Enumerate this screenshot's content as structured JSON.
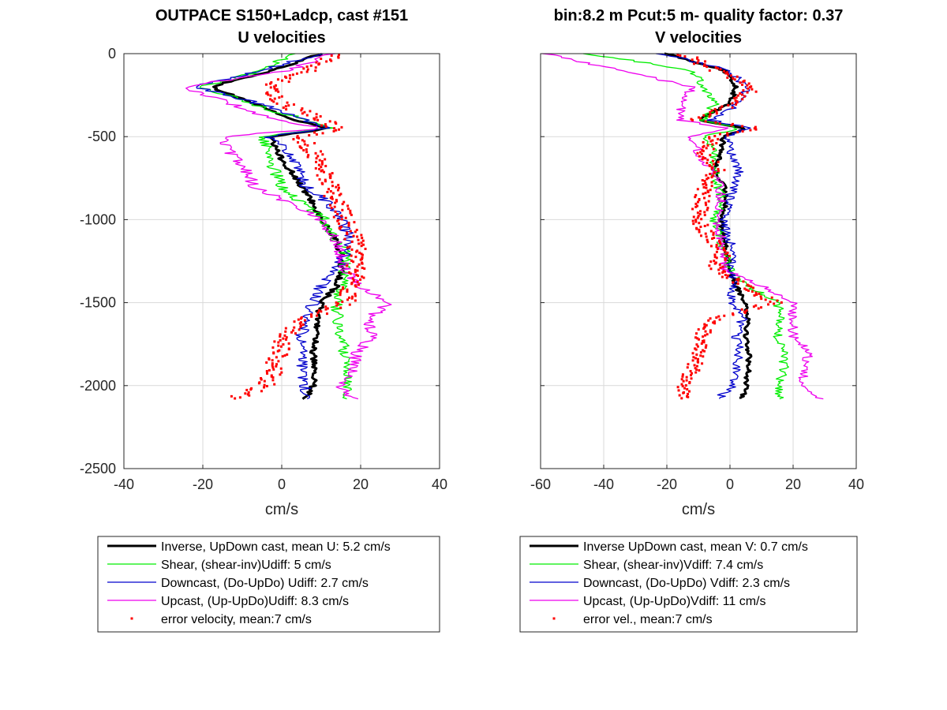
{
  "colors": {
    "inverse": "#000000",
    "shear": "#00ee00",
    "downcast": "#0000cc",
    "upcast": "#ee00ee",
    "error": "#ff0000",
    "grid": "#d9d9d9",
    "axis": "#262626"
  },
  "chart_data": [
    {
      "type": "line",
      "title": "OUTPACE S150+Ladcp, cast #151",
      "subtitle": "U velocities",
      "xlabel": "cm/s",
      "ylabel": "",
      "xlim": [
        -40,
        40
      ],
      "ylim": [
        -2500,
        0
      ],
      "xticks": [
        "-40",
        "-20",
        "0",
        "20",
        "40"
      ],
      "yticks": [
        "0",
        "-500",
        "-1000",
        "-1500",
        "-2000",
        "-2500"
      ],
      "grid": true,
      "legend_position": "below",
      "legend": [
        "Inverse, UpDown cast, mean U:  5.2 cm/s",
        "Shear, (shear-inv)Udiff:  5 cm/s",
        "Downcast, (Do-UpDo) Udiff:  2.7 cm/s",
        "Upcast, (Up-UpDo)Udiff:  8.3 cm/s",
        "error velocity, mean:7 cm/s"
      ],
      "depth": [
        0,
        -100,
        -200,
        -300,
        -400,
        -450,
        -500,
        -600,
        -700,
        -800,
        -900,
        -1000,
        -1100,
        -1200,
        -1300,
        -1400,
        -1500,
        -1600,
        -1700,
        -1800,
        -1900,
        -2000,
        -2080
      ],
      "series": [
        {
          "key": "inverse",
          "values": [
            10,
            -2,
            -18,
            -7,
            3,
            12,
            -3,
            -1,
            2,
            5,
            8,
            10,
            13,
            15,
            15,
            14,
            10,
            9,
            9,
            8,
            8,
            8,
            6
          ]
        },
        {
          "key": "shear",
          "values": [
            3,
            -5,
            -20,
            -8,
            6,
            12,
            -5,
            -3,
            -2,
            0,
            5,
            11,
            13,
            16,
            16,
            15,
            14,
            14,
            15,
            16,
            17,
            17,
            17
          ]
        },
        {
          "key": "downcast",
          "values": [
            10,
            -5,
            -22,
            -6,
            6,
            12,
            -3,
            2,
            4,
            6,
            12,
            15,
            17,
            16,
            14,
            10,
            8,
            6,
            5,
            5,
            5,
            6,
            6
          ]
        },
        {
          "key": "upcast",
          "values": [
            13,
            2,
            -25,
            -13,
            -2,
            10,
            -15,
            -13,
            -9,
            -7,
            2,
            10,
            13,
            15,
            16,
            20,
            27,
            22,
            23,
            19,
            18,
            15,
            18
          ]
        },
        {
          "key": "error",
          "values": [
            14,
            7,
            -3,
            0,
            10,
            14,
            5,
            8,
            10,
            12,
            14,
            16,
            18,
            19,
            19,
            18,
            16,
            6,
            1,
            -1,
            -2,
            -4,
            -12
          ]
        }
      ]
    },
    {
      "type": "line",
      "title": "bin:8.2 m  Pcut:5 m- quality factor:  0.37",
      "subtitle": "V velocities",
      "xlabel": "cm/s",
      "ylabel": "",
      "xlim": [
        -60,
        40
      ],
      "ylim": [
        -2500,
        0
      ],
      "xticks": [
        "-60",
        "-40",
        "-20",
        "0",
        "20",
        "40"
      ],
      "yticks": [],
      "grid": true,
      "legend_position": "below",
      "legend": [
        "Inverse UpDown cast, mean V:  0.7 cm/s",
        "Shear, (shear-inv)Vdiff:  7.4 cm/s",
        "Downcast, (Do-UpDo) Vdiff:  2.3 cm/s",
        "Upcast, (Up-UpDo)Vdiff:  11 cm/s",
        "error vel., mean:7 cm/s"
      ],
      "depth": [
        0,
        -100,
        -200,
        -300,
        -400,
        -450,
        -500,
        -600,
        -700,
        -800,
        -900,
        -1000,
        -1100,
        -1200,
        -1300,
        -1400,
        -1500,
        -1600,
        -1700,
        -1800,
        -1900,
        -2000,
        -2080
      ],
      "series": [
        {
          "key": "inverse",
          "values": [
            -20,
            -2,
            2,
            0,
            -10,
            5,
            -2,
            -3,
            -5,
            -2,
            -1,
            -3,
            -2,
            -1,
            0,
            2,
            5,
            6,
            5,
            6,
            6,
            5,
            4
          ]
        },
        {
          "key": "shear",
          "values": [
            -45,
            -12,
            -8,
            -5,
            -8,
            3,
            -8,
            -5,
            -5,
            -4,
            -2,
            -5,
            -3,
            -2,
            0,
            6,
            15,
            16,
            15,
            17,
            17,
            15,
            16
          ]
        },
        {
          "key": "downcast",
          "values": [
            -22,
            0,
            5,
            3,
            -6,
            6,
            -1,
            0,
            3,
            1,
            0,
            -2,
            -1,
            2,
            0,
            1,
            0,
            4,
            2,
            3,
            2,
            1,
            -4
          ]
        },
        {
          "key": "upcast",
          "values": [
            -58,
            -35,
            -12,
            -15,
            -16,
            0,
            -12,
            -10,
            -6,
            -3,
            -3,
            -4,
            -3,
            -2,
            -2,
            10,
            20,
            20,
            20,
            25,
            24,
            22,
            28
          ]
        },
        {
          "key": "error",
          "values": [
            -15,
            -5,
            8,
            2,
            -12,
            10,
            -5,
            -8,
            -4,
            -8,
            -9,
            -10,
            -7,
            -2,
            -5,
            5,
            14,
            -5,
            -9,
            -10,
            -12,
            -14,
            -15
          ]
        }
      ]
    }
  ]
}
